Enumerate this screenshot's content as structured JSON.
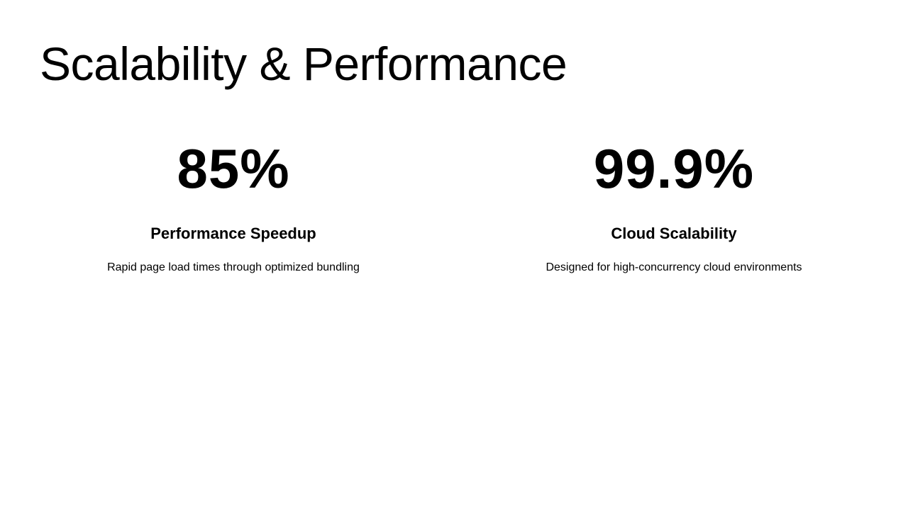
{
  "title": "Scalability & Performance",
  "stats": [
    {
      "value": "85%",
      "heading": "Performance Speedup",
      "description": "Rapid page load times through optimized bundling"
    },
    {
      "value": "99.9%",
      "heading": "Cloud Scalability",
      "description": "Designed for high-concurrency cloud environments"
    }
  ]
}
